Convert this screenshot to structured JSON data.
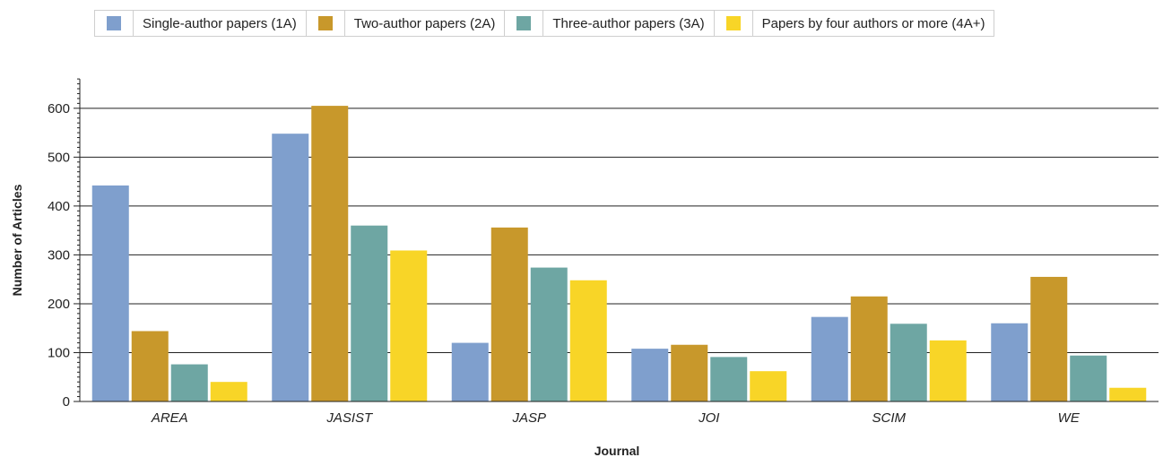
{
  "chart_data": {
    "type": "bar",
    "title": "",
    "xlabel": "Journal",
    "ylabel": "Number of Articles",
    "categories": [
      "AREA",
      "JASIST",
      "JASP",
      "JOI",
      "SCIM",
      "WE"
    ],
    "series": [
      {
        "name": "Single-author papers (1A)",
        "color": "#7f9fcd",
        "values": [
          442,
          548,
          120,
          108,
          173,
          160
        ]
      },
      {
        "name": "Two-author papers (2A)",
        "color": "#c8982b",
        "values": [
          144,
          605,
          356,
          116,
          215,
          255
        ]
      },
      {
        "name": "Three-author papers (3A)",
        "color": "#6ea6a3",
        "values": [
          76,
          360,
          274,
          91,
          159,
          94
        ]
      },
      {
        "name": "Papers by four authors or more (4A+)",
        "color": "#f8d527",
        "values": [
          40,
          309,
          248,
          62,
          125,
          28
        ]
      }
    ],
    "ylim": [
      0,
      660
    ],
    "yticks": [
      0,
      100,
      200,
      300,
      400,
      500,
      600
    ],
    "grid": true,
    "legend_position": "top"
  }
}
